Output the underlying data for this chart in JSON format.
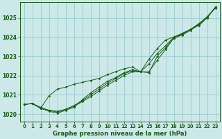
{
  "title": "Graphe pression niveau de la mer (hPa)",
  "background_color": "#cce8e8",
  "grid_color": "#99cccc",
  "line_color": "#1a5c1a",
  "xlim": [
    -0.5,
    23.5
  ],
  "ylim": [
    1019.6,
    1025.8
  ],
  "xtick_labels": [
    "0",
    "1",
    "2",
    "3",
    "4",
    "5",
    "6",
    "7",
    "8",
    "9",
    "10",
    "11",
    "12",
    "13",
    "14",
    "15",
    "16",
    "17",
    "18",
    "19",
    "20",
    "21",
    "22",
    "23"
  ],
  "xticks": [
    0,
    1,
    2,
    3,
    4,
    5,
    6,
    7,
    8,
    9,
    10,
    11,
    12,
    13,
    14,
    15,
    16,
    17,
    18,
    19,
    20,
    21,
    22,
    23
  ],
  "yticks": [
    1020,
    1021,
    1022,
    1023,
    1024,
    1025
  ],
  "series": [
    [
      1020.5,
      1020.55,
      1020.3,
      1020.2,
      1020.1,
      1020.25,
      1020.4,
      1020.65,
      1020.9,
      1021.2,
      1021.5,
      1021.75,
      1022.0,
      1022.2,
      1022.2,
      1022.2,
      1022.8,
      1023.35,
      1023.95,
      1024.1,
      1024.35,
      1024.65,
      1025.0,
      1025.55
    ],
    [
      1020.5,
      1020.55,
      1020.3,
      1020.15,
      1020.05,
      1020.2,
      1020.35,
      1020.75,
      1021.1,
      1021.4,
      1021.7,
      1021.9,
      1022.15,
      1022.3,
      1022.2,
      1022.85,
      1023.4,
      1023.85,
      1024.0,
      1024.2,
      1024.4,
      1024.65,
      1025.05,
      1025.5
    ],
    [
      1020.5,
      1020.55,
      1020.35,
      1020.2,
      1020.15,
      1020.25,
      1020.45,
      1020.7,
      1021.0,
      1021.3,
      1021.6,
      1021.85,
      1022.1,
      1022.25,
      1022.2,
      1022.6,
      1023.15,
      1023.55,
      1024.0,
      1024.15,
      1024.4,
      1024.6,
      1025.0,
      1025.55
    ],
    [
      1020.5,
      1020.55,
      1020.3,
      1020.95,
      1021.3,
      1021.4,
      1021.55,
      1021.65,
      1021.75,
      1021.85,
      1022.05,
      1022.2,
      1022.35,
      1022.45,
      1022.2,
      1022.15,
      1023.0,
      1023.45,
      1023.95,
      1024.15,
      1024.4,
      1024.7,
      1025.05,
      1025.55
    ]
  ]
}
